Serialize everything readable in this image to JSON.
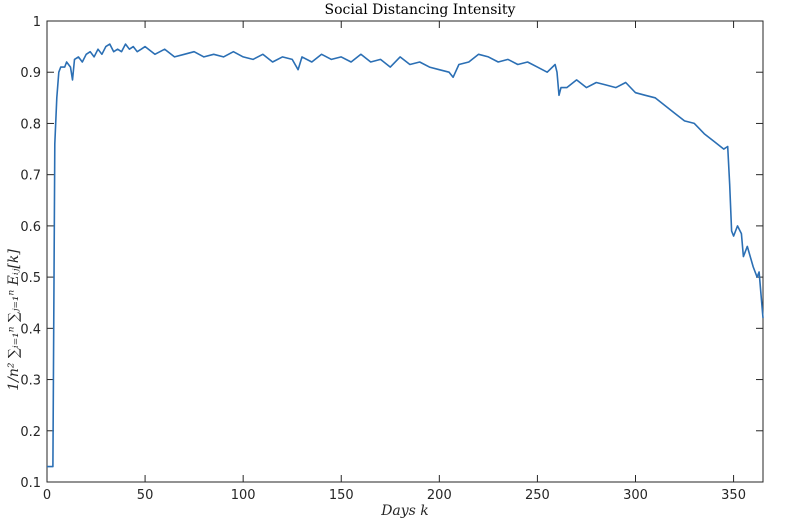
{
  "chart_data": {
    "type": "line",
    "title": "Social Distancing Intensity",
    "xlabel": "Days k",
    "ylabel": "1/n² ∑ᵢ₌₁ⁿ ∑ⱼ₌₁ⁿ Eᵢⱼ[k]",
    "xlim": [
      0,
      365
    ],
    "ylim": [
      0.1,
      1.0
    ],
    "x_ticks": [
      0,
      50,
      100,
      150,
      200,
      250,
      300,
      350
    ],
    "y_ticks": [
      0.1,
      0.2,
      0.3,
      0.4,
      0.5,
      0.6,
      0.7,
      0.8,
      0.9,
      1
    ],
    "x_tick_labels": [
      "0",
      "50",
      "100",
      "150",
      "200",
      "250",
      "300",
      "350"
    ],
    "y_tick_labels": [
      "0.1",
      "0.2",
      "0.3",
      "0.4",
      "0.5",
      "0.6",
      "0.7",
      "0.8",
      "0.9",
      "1"
    ],
    "grid": false,
    "line_color": "#2b6fb4",
    "series": [
      {
        "x": [
          0,
          3,
          4,
          5,
          6,
          7,
          8,
          9,
          10,
          12,
          13,
          14,
          16,
          18,
          20,
          22,
          24,
          26,
          28,
          30,
          32,
          34,
          36,
          38,
          40,
          42,
          44,
          46,
          48,
          50,
          55,
          60,
          65,
          70,
          75,
          80,
          85,
          90,
          95,
          100,
          105,
          110,
          115,
          120,
          125,
          128,
          130,
          135,
          140,
          145,
          150,
          155,
          160,
          165,
          170,
          175,
          180,
          185,
          190,
          195,
          200,
          205,
          207,
          210,
          215,
          220,
          225,
          230,
          235,
          240,
          245,
          250,
          255,
          259,
          260,
          261,
          262,
          265,
          270,
          275,
          280,
          285,
          290,
          295,
          300,
          305,
          310,
          315,
          320,
          325,
          330,
          335,
          340,
          345,
          347,
          348,
          349,
          350,
          352,
          354,
          355,
          357,
          360,
          362,
          363,
          365
        ],
        "y": [
          0.13,
          0.13,
          0.76,
          0.85,
          0.9,
          0.91,
          0.91,
          0.91,
          0.92,
          0.91,
          0.885,
          0.925,
          0.93,
          0.92,
          0.935,
          0.94,
          0.93,
          0.945,
          0.935,
          0.95,
          0.955,
          0.94,
          0.945,
          0.94,
          0.955,
          0.945,
          0.95,
          0.94,
          0.945,
          0.95,
          0.935,
          0.945,
          0.93,
          0.935,
          0.94,
          0.93,
          0.935,
          0.93,
          0.94,
          0.93,
          0.925,
          0.935,
          0.92,
          0.93,
          0.925,
          0.905,
          0.93,
          0.92,
          0.935,
          0.925,
          0.93,
          0.92,
          0.935,
          0.92,
          0.925,
          0.91,
          0.93,
          0.915,
          0.92,
          0.91,
          0.905,
          0.9,
          0.89,
          0.915,
          0.92,
          0.935,
          0.93,
          0.92,
          0.925,
          0.915,
          0.92,
          0.91,
          0.9,
          0.915,
          0.9,
          0.855,
          0.87,
          0.87,
          0.885,
          0.87,
          0.88,
          0.875,
          0.87,
          0.88,
          0.86,
          0.855,
          0.85,
          0.835,
          0.82,
          0.805,
          0.8,
          0.78,
          0.765,
          0.75,
          0.755,
          0.68,
          0.59,
          0.58,
          0.6,
          0.585,
          0.54,
          0.56,
          0.52,
          0.5,
          0.51,
          0.42
        ]
      }
    ]
  }
}
